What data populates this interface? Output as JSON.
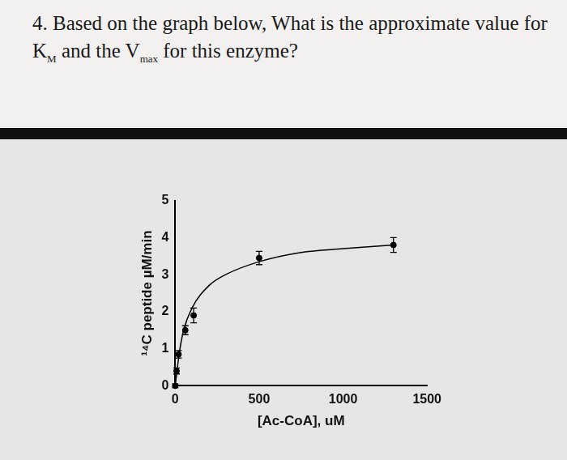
{
  "question": {
    "parts": [
      {
        "text": "4. Based on the graph below, What is the approximate value for K"
      },
      {
        "sub": "M"
      },
      {
        "text": " and the V"
      },
      {
        "sub": "max"
      },
      {
        "text": " for this enzyme?"
      }
    ]
  },
  "chart_data": {
    "type": "scatter",
    "x_label": "[Ac-CoA], uM",
    "y_label": "¹⁴C peptide µM/min",
    "xlim": [
      0,
      1500
    ],
    "xticks": [
      0,
      500,
      1000,
      1500
    ],
    "ylim": [
      0,
      5
    ],
    "yticks": [
      0,
      1,
      2,
      3,
      4,
      5
    ],
    "grid": false,
    "series": [
      {
        "type": "scatter",
        "color": "#000000",
        "marker": "circle",
        "x": [
          0,
          8,
          20,
          60,
          110,
          500,
          1300
        ],
        "values": [
          0,
          0.4,
          0.85,
          1.5,
          1.9,
          3.45,
          3.8
        ],
        "error": [
          0.05,
          0.08,
          0.1,
          0.12,
          0.2,
          0.18,
          0.2
        ]
      },
      {
        "type": "line",
        "color": "#000000",
        "line_style": "solid",
        "x": [
          0,
          25,
          50,
          100,
          200,
          300,
          500,
          750,
          1000,
          1300
        ],
        "values": [
          0,
          0.9,
          1.5,
          2.1,
          2.7,
          3.0,
          3.35,
          3.6,
          3.7,
          3.8
        ]
      }
    ]
  }
}
